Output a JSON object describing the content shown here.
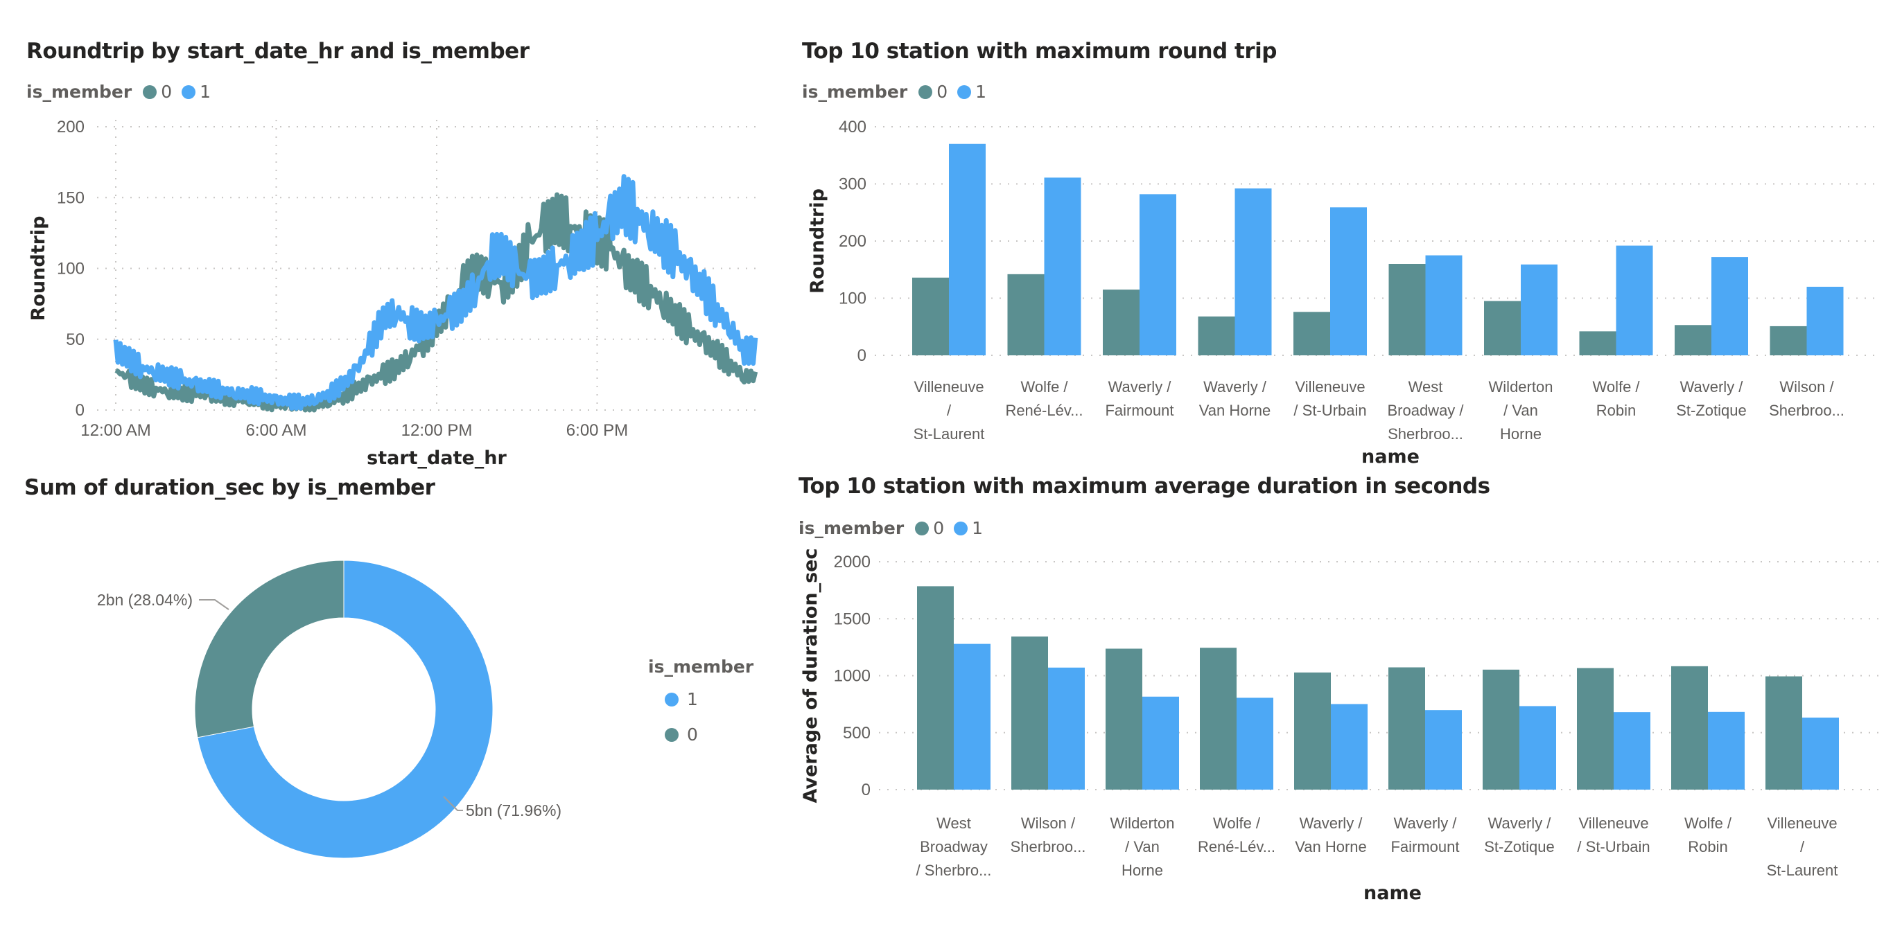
{
  "colors": {
    "member0": "#5B8F91",
    "member1": "#4DA8F5"
  },
  "chart_data": [
    {
      "type": "line",
      "title": "Roundtrip by start_date_hr and is_member",
      "legend_title": "is_member",
      "legend": [
        "0",
        "1"
      ],
      "legend_placement": "top-left",
      "xlabel": "start_date_hr",
      "ylabel": "Roundtrip",
      "x_ticks": [
        "12:00 AM",
        "6:00 AM",
        "12:00 PM",
        "6:00 PM"
      ],
      "y_ticks": [
        "0",
        "50",
        "100",
        "150",
        "200"
      ],
      "xlim": [
        0,
        24
      ],
      "ylim": [
        0,
        200
      ],
      "grid": true,
      "x_step_hours": 0.5,
      "series": [
        {
          "name": "0",
          "values": [
            28,
            22,
            18,
            15,
            13,
            12,
            11,
            10,
            9,
            8,
            7,
            6,
            4,
            3,
            3,
            4,
            6,
            10,
            15,
            20,
            25,
            30,
            38,
            48,
            60,
            72,
            88,
            98,
            92,
            90,
            100,
            118,
            128,
            135,
            130,
            125,
            120,
            115,
            100,
            92,
            85,
            75,
            65,
            55,
            48,
            40,
            32,
            24
          ]
        },
        {
          "name": "1",
          "values": [
            42,
            36,
            30,
            27,
            24,
            21,
            18,
            16,
            14,
            12,
            11,
            9,
            7,
            6,
            6,
            8,
            12,
            18,
            28,
            45,
            65,
            70,
            62,
            58,
            62,
            68,
            75,
            88,
            108,
            110,
            98,
            92,
            95,
            102,
            108,
            115,
            122,
            135,
            145,
            138,
            128,
            118,
            108,
            96,
            84,
            70,
            58,
            42
          ]
        }
      ]
    },
    {
      "type": "bar",
      "title": "Top 10 station with maximum round trip",
      "legend_title": "is_member",
      "legend": [
        "0",
        "1"
      ],
      "legend_placement": "top-left",
      "xlabel": "name",
      "ylabel": "Roundtrip",
      "y_ticks": [
        "0",
        "100",
        "200",
        "300",
        "400"
      ],
      "ylim": [
        0,
        400
      ],
      "grid": true,
      "categories": [
        [
          "Villeneuve",
          "/",
          "St-Laurent"
        ],
        [
          "Wolfe /",
          "René-Lév..."
        ],
        [
          "Waverly /",
          "Fairmount"
        ],
        [
          "Waverly /",
          "Van Horne"
        ],
        [
          "Villeneuve",
          "/ St-Urbain"
        ],
        [
          "West",
          "Broadway /",
          "Sherbroo..."
        ],
        [
          "Wilderton",
          "/ Van",
          "Horne"
        ],
        [
          "Wolfe /",
          "Robin"
        ],
        [
          "Waverly /",
          "St-Zotique"
        ],
        [
          "Wilson /",
          "Sherbroo..."
        ]
      ],
      "series": [
        {
          "name": "0",
          "values": [
            136,
            142,
            115,
            68,
            76,
            160,
            95,
            42,
            53,
            51
          ]
        },
        {
          "name": "1",
          "values": [
            370,
            311,
            282,
            292,
            259,
            175,
            159,
            192,
            172,
            120
          ]
        }
      ]
    },
    {
      "type": "pie",
      "title": "Sum of duration_sec by is_member",
      "legend_title": "is_member",
      "legend": [
        "1",
        "0"
      ],
      "legend_placement": "right",
      "slices": [
        {
          "name": "1",
          "value_pct": 71.96,
          "label": "5bn (71.96%)"
        },
        {
          "name": "0",
          "value_pct": 28.04,
          "label": "2bn (28.04%)"
        }
      ]
    },
    {
      "type": "bar",
      "title": "Top 10 station with maximum average duration in seconds",
      "legend_title": "is_member",
      "legend": [
        "0",
        "1"
      ],
      "legend_placement": "top-left",
      "xlabel": "name",
      "ylabel": "Average of duration_sec",
      "y_ticks": [
        "0",
        "500",
        "1000",
        "1500",
        "2000"
      ],
      "ylim": [
        0,
        2000
      ],
      "grid": true,
      "categories": [
        [
          "West",
          "Broadway",
          "/ Sherbro..."
        ],
        [
          "Wilson /",
          "Sherbroo..."
        ],
        [
          "Wilderton",
          "/ Van",
          "Horne"
        ],
        [
          "Wolfe /",
          "René-Lév..."
        ],
        [
          "Waverly /",
          "Van Horne"
        ],
        [
          "Waverly /",
          "Fairmount"
        ],
        [
          "Waverly /",
          "St-Zotique"
        ],
        [
          "Villeneuve",
          "/ St-Urbain"
        ],
        [
          "Wolfe /",
          "Robin"
        ],
        [
          "Villeneuve",
          "/",
          "St-Laurent"
        ]
      ],
      "series": [
        {
          "name": "0",
          "values": [
            1785,
            1344,
            1237,
            1245,
            1028,
            1073,
            1053,
            1067,
            1083,
            994
          ]
        },
        {
          "name": "1",
          "values": [
            1279,
            1071,
            816,
            806,
            751,
            698,
            733,
            680,
            682,
            632
          ]
        }
      ]
    }
  ]
}
